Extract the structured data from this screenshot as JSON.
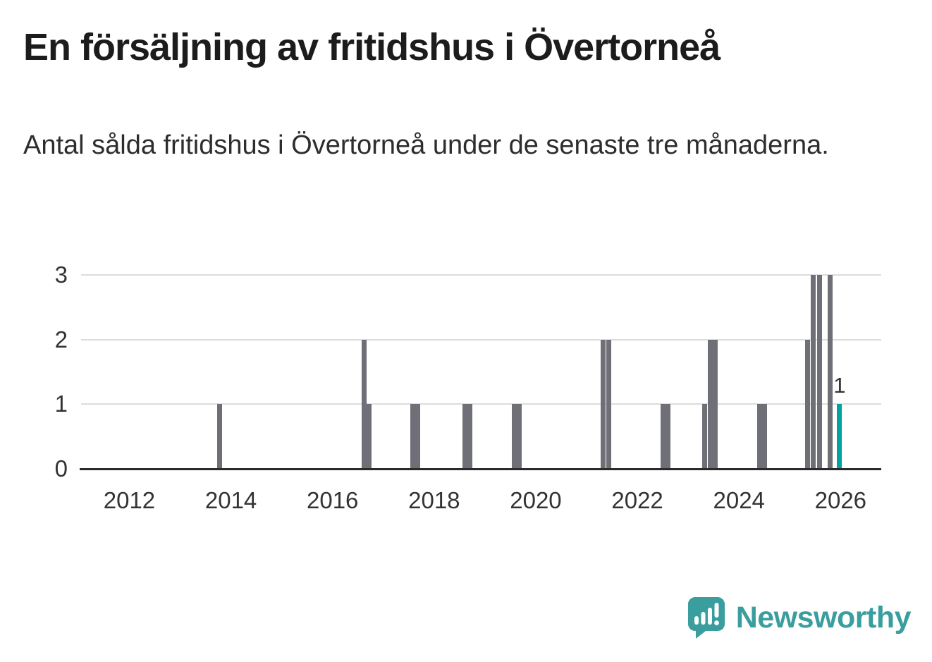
{
  "header": {
    "title": "En försäljning av fritidshus i Övertorneå",
    "subtitle": "Antal sålda fritidshus i Övertorneå under de senaste tre månaderna."
  },
  "chart_data": {
    "type": "bar",
    "title": "En försäljning av fritidshus i Övertorneå",
    "subtitle": "Antal sålda fritidshus i Övertorneå under de senaste tre månaderna.",
    "xlabel": "",
    "ylabel": "",
    "xlim": [
      2011.05,
      2026.8
    ],
    "ylim": [
      0,
      3
    ],
    "yticks": [
      0,
      1,
      2,
      3
    ],
    "xticks": [
      2012,
      2014,
      2016,
      2018,
      2020,
      2022,
      2024,
      2026
    ],
    "grid": "horizontal-light",
    "legend": "none",
    "bar_color": "#6f6f78",
    "highlight_color": "#00a2a2",
    "bars": [
      {
        "x": 2013.78,
        "value": 1
      },
      {
        "x": 2016.62,
        "value": 2
      },
      {
        "x": 2016.72,
        "value": 1
      },
      {
        "x": 2017.58,
        "value": 1
      },
      {
        "x": 2017.68,
        "value": 1
      },
      {
        "x": 2018.6,
        "value": 1
      },
      {
        "x": 2018.7,
        "value": 1
      },
      {
        "x": 2019.58,
        "value": 1
      },
      {
        "x": 2019.68,
        "value": 1
      },
      {
        "x": 2021.33,
        "value": 2
      },
      {
        "x": 2021.43,
        "value": 2
      },
      {
        "x": 2022.5,
        "value": 1
      },
      {
        "x": 2022.6,
        "value": 1
      },
      {
        "x": 2023.33,
        "value": 1
      },
      {
        "x": 2023.43,
        "value": 2
      },
      {
        "x": 2023.53,
        "value": 2
      },
      {
        "x": 2024.4,
        "value": 1
      },
      {
        "x": 2024.5,
        "value": 1
      },
      {
        "x": 2025.35,
        "value": 2
      },
      {
        "x": 2025.46,
        "value": 3
      },
      {
        "x": 2025.58,
        "value": 3
      },
      {
        "x": 2025.79,
        "value": 3
      },
      {
        "x": 2025.98,
        "value": 1,
        "highlight": true,
        "label": "1"
      }
    ]
  },
  "footer": {
    "brand": "Newsworthy",
    "brand_color": "#3b9e9e",
    "logo_icon": "newsworthy-pin-barchart-icon"
  }
}
